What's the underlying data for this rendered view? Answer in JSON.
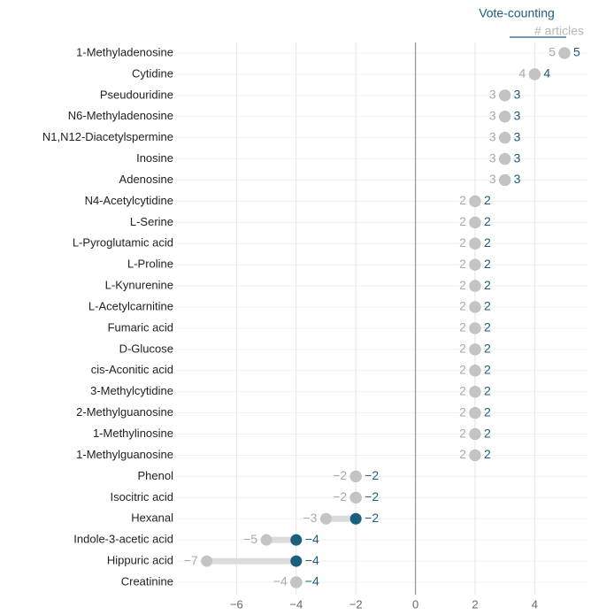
{
  "chart_data": {
    "type": "dumbbell",
    "categories": [
      "1-Methyladenosine",
      "Cytidine",
      "Pseudouridine",
      "N6-Methyladenosine",
      "N1,N12-Diacetylspermine",
      "Inosine",
      "Adenosine",
      "N4-Acetylcytidine",
      "L-Serine",
      "L-Pyroglutamic acid",
      "L-Proline",
      "L-Kynurenine",
      "L-Acetylcarnitine",
      "Fumaric acid",
      "D-Glucose",
      "cis-Aconitic acid",
      "3-Methylcytidine",
      "2-Methylguanosine",
      "1-Methylinosine",
      "1-Methylguanosine",
      "Phenol",
      "Isocitric acid",
      "Hexanal",
      "Indole-3-acetic acid",
      "Hippuric acid",
      "Creatinine"
    ],
    "series": [
      {
        "name": "# articles",
        "color": "#c4c4c4",
        "values": [
          5,
          4,
          3,
          3,
          3,
          3,
          3,
          2,
          2,
          2,
          2,
          2,
          2,
          2,
          2,
          2,
          2,
          2,
          2,
          2,
          -2,
          -2,
          -3,
          -5,
          -7,
          -4
        ],
        "value_labels": [
          "5",
          "4",
          "3",
          "3",
          "3",
          "3",
          "3",
          "2",
          "2",
          "2",
          "2",
          "2",
          "2",
          "2",
          "2",
          "2",
          "2",
          "2",
          "2",
          "2",
          "−2",
          "−2",
          "−3",
          "−5",
          "−7",
          "−4"
        ]
      },
      {
        "name": "Vote-counting",
        "color": "#1b5e7e",
        "values": [
          5,
          4,
          3,
          3,
          3,
          3,
          3,
          2,
          2,
          2,
          2,
          2,
          2,
          2,
          2,
          2,
          2,
          2,
          2,
          2,
          -2,
          -2,
          -2,
          -4,
          -4,
          -4
        ],
        "value_labels": [
          "5",
          "4",
          "3",
          "3",
          "3",
          "3",
          "3",
          "2",
          "2",
          "2",
          "2",
          "2",
          "2",
          "2",
          "2",
          "2",
          "2",
          "2",
          "2",
          "2",
          "−2",
          "−2",
          "−2",
          "−4",
          "−4",
          "−4"
        ]
      }
    ],
    "xlim": [
      -8,
      5.8
    ],
    "xticks": [
      {
        "value": -6,
        "label": "−6"
      },
      {
        "value": -4,
        "label": "−4"
      },
      {
        "value": -2,
        "label": "−2"
      },
      0,
      2,
      4
    ],
    "grid": true
  }
}
